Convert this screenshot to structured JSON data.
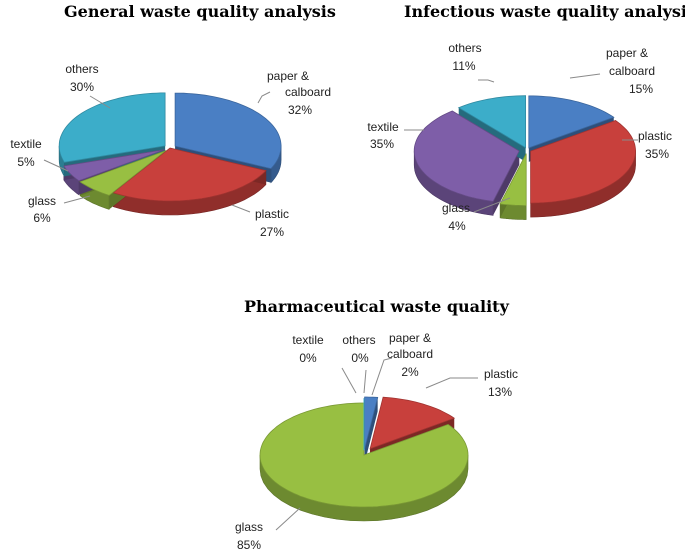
{
  "chart_data": [
    {
      "type": "pie",
      "title": "General waste quality analysis",
      "slices": [
        {
          "label": "paper & calboard",
          "value": 32,
          "value_text": "32%",
          "color": "#4a7fc4"
        },
        {
          "label": "plastic",
          "value": 27,
          "value_text": "27%",
          "color": "#c8403c"
        },
        {
          "label": "glass",
          "value": 6,
          "value_text": "6%",
          "color": "#98bf42"
        },
        {
          "label": "textile",
          "value": 5,
          "value_text": "5%",
          "color": "#7e5ea8"
        },
        {
          "label": "others",
          "value": 30,
          "value_text": "30%",
          "color": "#3cadc9"
        }
      ]
    },
    {
      "type": "pie",
      "title": "Infectious waste quality analysis",
      "slices": [
        {
          "label": "paper & calboard",
          "value": 15,
          "value_text": "15%",
          "color": "#4a7fc4"
        },
        {
          "label": "plastic",
          "value": 35,
          "value_text": "35%",
          "color": "#c8403c"
        },
        {
          "label": "glass",
          "value": 4,
          "value_text": "4%",
          "color": "#98bf42"
        },
        {
          "label": "textile",
          "value": 35,
          "value_text": "35%",
          "color": "#7e5ea8"
        },
        {
          "label": "others",
          "value": 11,
          "value_text": "11%",
          "color": "#3cadc9"
        }
      ]
    },
    {
      "type": "pie",
      "title": "Pharmaceutical waste quality",
      "slices": [
        {
          "label": "paper & calboard",
          "value": 2,
          "value_text": "2%",
          "color": "#4a7fc4"
        },
        {
          "label": "plastic",
          "value": 13,
          "value_text": "13%",
          "color": "#c8403c"
        },
        {
          "label": "glass",
          "value": 85,
          "value_text": "85%",
          "color": "#98bf42"
        },
        {
          "label": "textile",
          "value": 0,
          "value_text": "0%",
          "color": "#7e5ea8"
        },
        {
          "label": "others",
          "value": 0,
          "value_text": "0%",
          "color": "#3cadc9"
        }
      ]
    }
  ]
}
